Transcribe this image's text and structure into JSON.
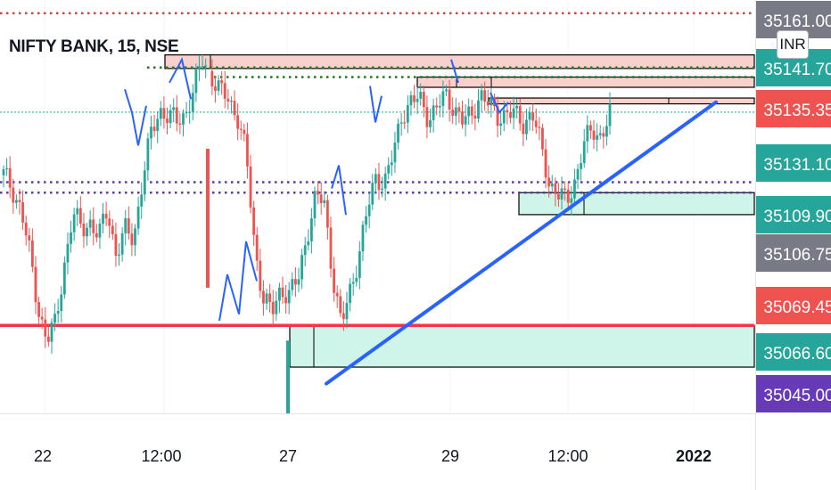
{
  "header": {
    "title": "NIFTY BANK, 15, NSE",
    "currency": "INR"
  },
  "colors": {
    "up": "#26a69a",
    "down": "#ef5350",
    "trendline": "#2962ff",
    "support": "#f23645",
    "supply_zone": "#f8d0cc",
    "demand_zone": "#cff5ea",
    "dotted_green": "#1b7a1b",
    "dotted_purple": "#5b3aa6",
    "dotted_red": "#e53935",
    "teal_dotted": "#26a69a"
  },
  "price_scale": [
    {
      "price": "35161.00",
      "color": "#787b86"
    },
    {
      "price": "35141.70",
      "color": "#26a69a"
    },
    {
      "price": "35135.35",
      "color": "#ef5350"
    },
    {
      "price": "35131.10",
      "color": "#26a69a"
    },
    {
      "price": "35109.90",
      "color": "#26a69a"
    },
    {
      "price": "35106.75",
      "color": "#787b86"
    },
    {
      "price": "35069.45",
      "color": "#ef5350"
    },
    {
      "price": "35066.60",
      "color": "#26a69a"
    },
    {
      "price": "35045.00",
      "color": "#673ab7"
    }
  ],
  "chart_data": {
    "type": "candlestick",
    "title": "NIFTY BANK, 15, NSE",
    "x_ticks": [
      "22",
      "12:00",
      "27",
      "29",
      "12:00",
      "2022"
    ],
    "y_range": [
      35040,
      35165
    ],
    "horizontal_levels": [
      {
        "price": 35161.0,
        "style": "dotted",
        "color": "#e53935"
      },
      {
        "price": 35144.6,
        "style": "dotted",
        "color": "#1b7a1b"
      },
      {
        "price": 35141.7,
        "style": "dotted",
        "color": "#1b7a1b"
      },
      {
        "price": 35131.1,
        "style": "dotted",
        "color": "#26a69a"
      },
      {
        "price": 35109.9,
        "style": "dotted",
        "color": "#5b3aa6"
      },
      {
        "price": 35106.75,
        "style": "dotted",
        "color": "#5b3aa6"
      },
      {
        "price": 35066.6,
        "style": "solid",
        "color": "#f23645"
      }
    ],
    "zones": [
      {
        "kind": "supply",
        "from": 35144.3,
        "to": 35148.4
      },
      {
        "kind": "supply",
        "from": 35141.7,
        "to": 35138.6
      },
      {
        "kind": "supply",
        "from": 35133.6,
        "to": 35135.35
      },
      {
        "kind": "demand",
        "from": 35106.75,
        "to": 35100.1
      },
      {
        "kind": "demand",
        "from": 35066.6,
        "to": 35054.0
      }
    ],
    "trendline": {
      "from_price": 35049.0,
      "to_price": 35134.1,
      "color": "#2962ff"
    },
    "price_path": [
      35112,
      35108,
      35102,
      35088,
      35072,
      35062,
      35067,
      35085,
      35100,
      35096,
      35098,
      35093,
      35102,
      35088,
      35095,
      35093,
      35110,
      35124,
      35132,
      35130,
      35128,
      35131,
      35138,
      35147,
      35142,
      35137,
      35135,
      35130,
      35118,
      35090,
      35075,
      35070,
      35078,
      35076,
      35080,
      35094,
      35105,
      35104,
      35082,
      35066,
      35077,
      35088,
      35101,
      35112,
      35110,
      35118,
      35131,
      35134,
      35135,
      35130,
      35132,
      35136,
      35133,
      35128,
      35130,
      35137,
      35133,
      35130,
      35131,
      35130,
      35128,
      35131,
      35121,
      35110,
      35106,
      35104,
      35111,
      35121,
      35126,
      35124,
      35130
    ]
  }
}
